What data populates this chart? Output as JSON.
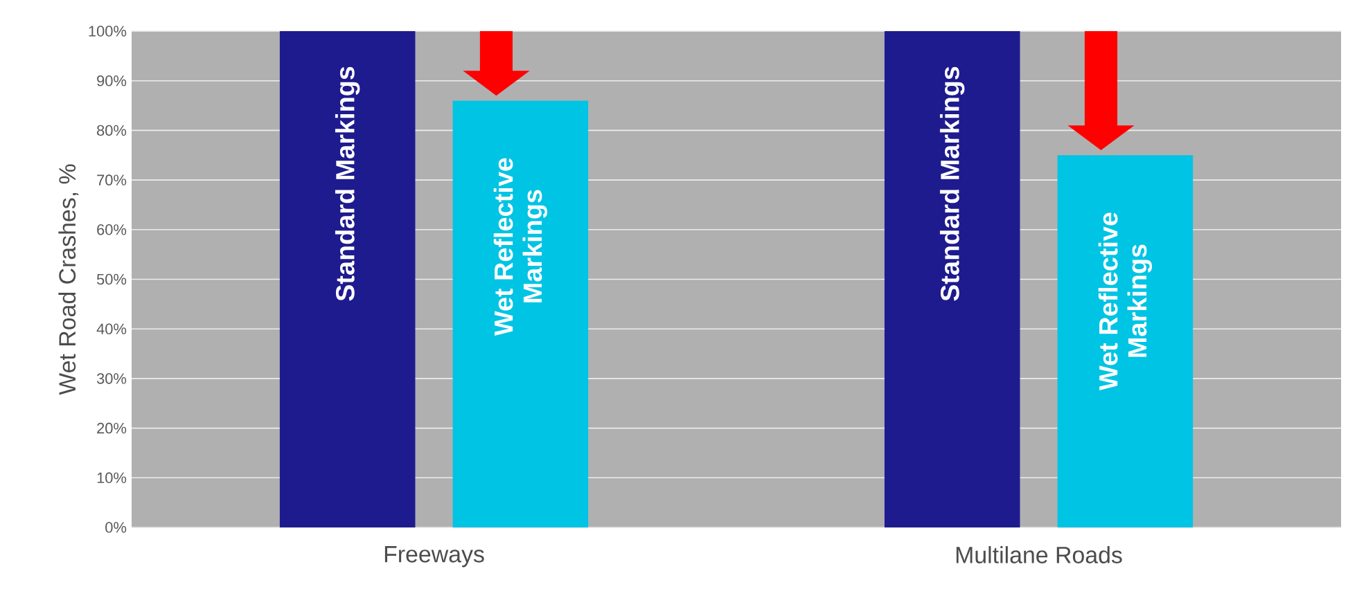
{
  "chart_data": {
    "type": "bar",
    "ylabel": "Wet Road Crashes, %",
    "categories": [
      "Freeways",
      "Multilane Roads"
    ],
    "series": [
      {
        "name": "Standard Markings",
        "color": "#1e1b8e",
        "values": [
          100,
          100
        ]
      },
      {
        "name": "Wet Reflective Markings",
        "color": "#00c4e4",
        "values": [
          86,
          75
        ]
      }
    ],
    "ylim": [
      0,
      100
    ],
    "yticks": [
      {
        "value": 0,
        "label": "0%"
      },
      {
        "value": 10,
        "label": "10%"
      },
      {
        "value": 20,
        "label": "20%"
      },
      {
        "value": 30,
        "label": "30%"
      },
      {
        "value": 40,
        "label": "40%"
      },
      {
        "value": 50,
        "label": "50%"
      },
      {
        "value": 60,
        "label": "60%"
      },
      {
        "value": 70,
        "label": "70%"
      },
      {
        "value": 80,
        "label": "80%"
      },
      {
        "value": 90,
        "label": "90%"
      },
      {
        "value": 100,
        "label": "100%"
      }
    ],
    "grid": "y"
  }
}
